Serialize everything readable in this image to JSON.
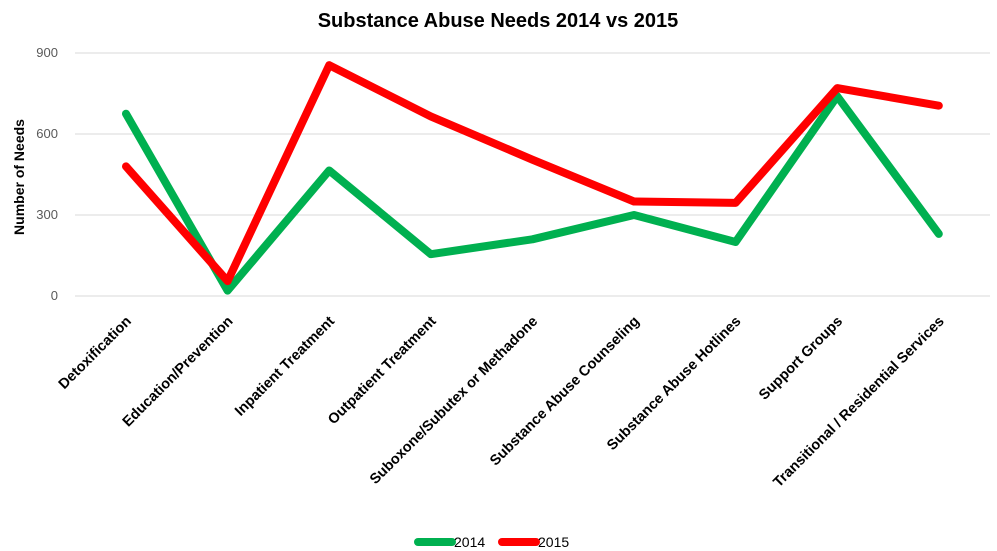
{
  "chart_data": {
    "type": "line",
    "title": "Substance Abuse Needs 2014 vs 2015",
    "xlabel": "",
    "ylabel": "Number of Needs",
    "ylim": [
      0,
      900
    ],
    "yticks": [
      0,
      300,
      600,
      900
    ],
    "grid": true,
    "legend_position": "bottom",
    "categories": [
      "Detoxification",
      "Education/Prevention",
      "Inpatient Treatment",
      "Outpatient Treatment",
      "Suboxone/Subutex or Methadone",
      "Substance Abuse Counseling",
      "Substance Abuse Hotlines",
      "Support Groups",
      "Transitional / Residential Services"
    ],
    "series": [
      {
        "name": "2014",
        "color": "#00b050",
        "values": [
          675,
          20,
          465,
          155,
          210,
          300,
          200,
          740,
          230
        ]
      },
      {
        "name": "2015",
        "color": "#ff0000",
        "values": [
          480,
          55,
          855,
          665,
          505,
          350,
          345,
          770,
          705
        ]
      }
    ]
  }
}
